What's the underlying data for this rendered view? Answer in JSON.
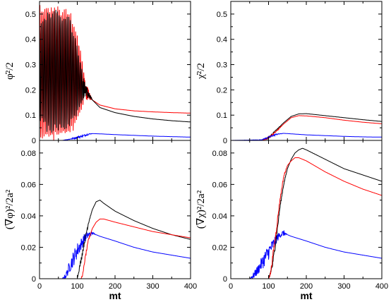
{
  "chart_data": [
    {
      "type": "line",
      "panel": "top-left",
      "ylabel": "φ̇²/2",
      "xlabel": "",
      "xlim": [
        0,
        400
      ],
      "ylim": [
        0,
        0.55
      ],
      "xticks": [
        0,
        100,
        200,
        300,
        400
      ],
      "yticks": [
        0,
        0.1,
        0.2,
        0.3,
        0.4,
        0.5
      ],
      "ytick_labels": [
        "0",
        "0.1",
        "0.2",
        "0.3",
        "0.4",
        "0.5"
      ],
      "series": [
        {
          "color": "#ff0000",
          "x": [
            0,
            20,
            40,
            60,
            80,
            100,
            110,
            120,
            140,
            160,
            200,
            250,
            300,
            350,
            400
          ],
          "y": [
            0.27,
            0.27,
            0.27,
            0.27,
            0.26,
            0.25,
            0.23,
            0.2,
            0.16,
            0.14,
            0.125,
            0.117,
            0.113,
            0.11,
            0.108
          ],
          "osc": [
            0.27,
            0.27,
            0.27,
            0.26,
            0.26,
            0.17,
            0.12,
            0.04,
            0,
            0,
            0,
            0,
            0,
            0,
            0
          ]
        },
        {
          "color": "#000000",
          "x": [
            0,
            20,
            40,
            60,
            80,
            100,
            110,
            120,
            140,
            160,
            200,
            250,
            300,
            350,
            400
          ],
          "y": [
            0.27,
            0.27,
            0.27,
            0.27,
            0.27,
            0.24,
            0.22,
            0.2,
            0.16,
            0.13,
            0.11,
            0.095,
            0.085,
            0.078,
            0.073
          ],
          "osc": [
            0.2,
            0.24,
            0.25,
            0.24,
            0.22,
            0.14,
            0.08,
            0.03,
            0,
            0,
            0,
            0,
            0,
            0,
            0
          ]
        },
        {
          "color": "#0000ff",
          "x": [
            0,
            60,
            80,
            100,
            120,
            130,
            140,
            160,
            200,
            250,
            300,
            350,
            400
          ],
          "y": [
            0,
            0,
            0.005,
            0.012,
            0.02,
            0.025,
            0.027,
            0.026,
            0.023,
            0.02,
            0.017,
            0.015,
            0.013
          ],
          "osc": [
            0,
            0,
            0.002,
            0.004,
            0.004,
            0.003,
            0,
            0,
            0,
            0,
            0,
            0,
            0
          ]
        }
      ]
    },
    {
      "type": "line",
      "panel": "top-right",
      "ylabel": "χ̇²/2",
      "xlabel": "",
      "xlim": [
        0,
        400
      ],
      "ylim": [
        0,
        0.55
      ],
      "xticks": [
        0,
        100,
        200,
        300,
        400
      ],
      "yticks": [
        0,
        0.1,
        0.2,
        0.3,
        0.4,
        0.5
      ],
      "ytick_labels": [
        "0",
        "0.1",
        "0.2",
        "0.3",
        "0.4",
        "0.5"
      ],
      "series": [
        {
          "color": "#000000",
          "x": [
            0,
            80,
            100,
            120,
            140,
            160,
            180,
            200,
            250,
            300,
            350,
            400
          ],
          "y": [
            0,
            0,
            0.01,
            0.04,
            0.07,
            0.095,
            0.105,
            0.106,
            0.098,
            0.09,
            0.082,
            0.075
          ],
          "osc": [
            0,
            0,
            0.004,
            0.003,
            0,
            0,
            0,
            0,
            0,
            0,
            0,
            0
          ]
        },
        {
          "color": "#ff0000",
          "x": [
            0,
            80,
            100,
            120,
            140,
            160,
            180,
            200,
            250,
            300,
            350,
            400
          ],
          "y": [
            0,
            0,
            0.01,
            0.035,
            0.065,
            0.09,
            0.098,
            0.097,
            0.09,
            0.08,
            0.072,
            0.066
          ],
          "osc": [
            0,
            0,
            0.004,
            0.003,
            0,
            0,
            0,
            0,
            0,
            0,
            0,
            0
          ]
        },
        {
          "color": "#0000ff",
          "x": [
            0,
            80,
            100,
            120,
            140,
            160,
            200,
            250,
            300,
            350,
            400
          ],
          "y": [
            0,
            0.002,
            0.012,
            0.024,
            0.028,
            0.026,
            0.022,
            0.019,
            0.016,
            0.014,
            0.013
          ],
          "osc": [
            0,
            0.001,
            0.003,
            0.003,
            0,
            0,
            0,
            0,
            0,
            0,
            0
          ]
        }
      ]
    },
    {
      "type": "line",
      "panel": "bottom-left",
      "ylabel": "(∇φ)²/2a²",
      "xlabel": "mt",
      "xlim": [
        0,
        400
      ],
      "ylim": [
        0,
        0.088
      ],
      "xticks": [
        0,
        100,
        200,
        300,
        400
      ],
      "xtick_labels": [
        "0",
        "100",
        "200",
        "300",
        "400"
      ],
      "yticks": [
        0,
        0.02,
        0.04,
        0.06,
        0.08
      ],
      "ytick_labels": [
        "0",
        "0.02",
        "0.04",
        "0.06",
        "0.08"
      ],
      "series": [
        {
          "color": "#0000ff",
          "x": [
            0,
            60,
            70,
            80,
            90,
            100,
            110,
            120,
            130,
            140,
            150,
            160,
            200,
            250,
            300,
            350,
            400
          ],
          "y": [
            0,
            0,
            0.002,
            0.008,
            0.013,
            0.018,
            0.022,
            0.026,
            0.028,
            0.029,
            0.028,
            0.027,
            0.024,
            0.02,
            0.017,
            0.015,
            0.013
          ],
          "osc": [
            0,
            0,
            0.002,
            0.004,
            0.005,
            0.005,
            0.004,
            0.003,
            0.002,
            0.001,
            0,
            0,
            0,
            0,
            0,
            0,
            0
          ]
        },
        {
          "color": "#000000",
          "x": [
            0,
            100,
            110,
            120,
            130,
            140,
            150,
            160,
            170,
            200,
            250,
            300,
            350,
            400
          ],
          "y": [
            0,
            0,
            0.012,
            0.025,
            0.036,
            0.044,
            0.049,
            0.05,
            0.048,
            0.043,
            0.037,
            0.032,
            0.028,
            0.025
          ],
          "osc": [
            0,
            0,
            0.002,
            0.002,
            0.001,
            0,
            0,
            0,
            0,
            0,
            0,
            0,
            0,
            0
          ]
        },
        {
          "color": "#ff0000",
          "x": [
            0,
            110,
            115,
            120,
            130,
            140,
            150,
            160,
            170,
            200,
            250,
            300,
            350,
            400
          ],
          "y": [
            0,
            0,
            0.003,
            0.012,
            0.025,
            0.032,
            0.036,
            0.038,
            0.038,
            0.036,
            0.033,
            0.03,
            0.028,
            0.026
          ],
          "osc": [
            0,
            0,
            0.001,
            0.001,
            0.001,
            0,
            0,
            0,
            0,
            0,
            0,
            0,
            0,
            0
          ]
        }
      ]
    },
    {
      "type": "line",
      "panel": "bottom-right",
      "ylabel": "(∇χ)²/2a²",
      "xlabel": "mt",
      "xlim": [
        0,
        400
      ],
      "ylim": [
        0,
        0.088
      ],
      "xticks": [
        0,
        100,
        200,
        300,
        400
      ],
      "xtick_labels": [
        "0",
        "100",
        "200",
        "300",
        "400"
      ],
      "yticks": [
        0,
        0.02,
        0.04,
        0.06,
        0.08
      ],
      "ytick_labels": [
        "0",
        "0.02",
        "0.04",
        "0.06",
        "0.08"
      ],
      "series": [
        {
          "color": "#0000ff",
          "x": [
            0,
            50,
            60,
            70,
            80,
            90,
            100,
            110,
            120,
            130,
            140,
            150,
            160,
            200,
            250,
            300,
            350,
            400
          ],
          "y": [
            0,
            0,
            0.002,
            0.005,
            0.009,
            0.013,
            0.017,
            0.021,
            0.025,
            0.028,
            0.029,
            0.028,
            0.027,
            0.024,
            0.02,
            0.017,
            0.015,
            0.013
          ],
          "osc": [
            0,
            0,
            0.002,
            0.003,
            0.004,
            0.005,
            0.005,
            0.004,
            0.003,
            0.002,
            0.002,
            0,
            0,
            0,
            0,
            0,
            0,
            0
          ]
        },
        {
          "color": "#000000",
          "x": [
            0,
            100,
            110,
            120,
            130,
            140,
            150,
            160,
            170,
            180,
            190,
            200,
            250,
            300,
            350,
            400
          ],
          "y": [
            0,
            0,
            0.008,
            0.025,
            0.045,
            0.06,
            0.07,
            0.076,
            0.08,
            0.082,
            0.083,
            0.082,
            0.076,
            0.07,
            0.066,
            0.062
          ],
          "osc": [
            0,
            0,
            0.002,
            0.002,
            0.001,
            0.001,
            0,
            0,
            0,
            0,
            0,
            0,
            0,
            0,
            0,
            0
          ]
        },
        {
          "color": "#ff0000",
          "x": [
            0,
            100,
            105,
            110,
            120,
            130,
            140,
            150,
            160,
            170,
            180,
            200,
            250,
            300,
            350,
            400
          ],
          "y": [
            0,
            0,
            0.003,
            0.012,
            0.03,
            0.05,
            0.065,
            0.072,
            0.075,
            0.077,
            0.077,
            0.075,
            0.068,
            0.062,
            0.057,
            0.053
          ],
          "osc": [
            0,
            0,
            0.001,
            0.002,
            0.002,
            0.001,
            0.001,
            0,
            0,
            0,
            0,
            0,
            0,
            0,
            0,
            0
          ]
        }
      ]
    }
  ]
}
